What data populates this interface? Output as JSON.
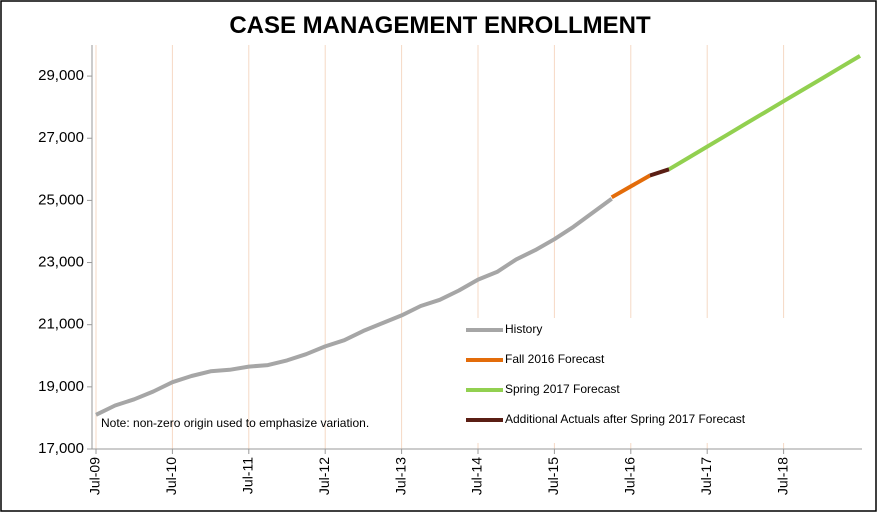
{
  "chart_data": {
    "type": "line",
    "title": "CASE MANAGEMENT ENROLLMENT",
    "annotation": "Note: non-zero origin used to emphasize variation.",
    "categories": [
      "Jul-09",
      null,
      null,
      null,
      "Jul-10",
      null,
      null,
      null,
      "Jul-11",
      null,
      null,
      null,
      "Jul-12",
      null,
      null,
      null,
      "Jul-13",
      null,
      null,
      null,
      "Jul-14",
      null,
      null,
      null,
      "Jul-15",
      null,
      null,
      null,
      "Jul-16",
      null,
      null,
      null,
      "Jul-17",
      null,
      null,
      null,
      "Jul-18",
      null,
      null,
      null,
      null
    ],
    "series": [
      {
        "name": "History",
        "color": "#a6a6a6",
        "values": [
          18100,
          18400,
          18600,
          18850,
          19150,
          19350,
          19500,
          19550,
          19650,
          19700,
          19850,
          20050,
          20300,
          20500,
          20800,
          21050,
          21300,
          21600,
          21800,
          22100,
          22450,
          22700,
          23100,
          23400,
          23750,
          24150,
          24600,
          25050,
          null,
          null,
          null,
          null,
          null,
          null,
          null,
          null,
          null,
          null,
          null,
          null,
          null
        ]
      },
      {
        "name": "Fall 2016 Forecast",
        "color": "#e36c0a",
        "values": [
          null,
          null,
          null,
          null,
          null,
          null,
          null,
          null,
          null,
          null,
          null,
          null,
          null,
          null,
          null,
          null,
          null,
          null,
          null,
          null,
          null,
          null,
          null,
          null,
          null,
          null,
          null,
          25100,
          25450,
          25800,
          null,
          null,
          null,
          null,
          null,
          null,
          null,
          null,
          null,
          null,
          null
        ]
      },
      {
        "name": "Spring 2017 Forecast",
        "color": "#92d050",
        "values": [
          null,
          null,
          null,
          null,
          null,
          null,
          null,
          null,
          null,
          null,
          null,
          null,
          null,
          null,
          null,
          null,
          null,
          null,
          null,
          null,
          null,
          null,
          null,
          null,
          null,
          null,
          null,
          null,
          null,
          null,
          26000,
          26365,
          26730,
          27095,
          27460,
          27825,
          28190,
          28555,
          28920,
          29285,
          29650
        ]
      },
      {
        "name": "Additional Actuals after Spring 2017 Forecast",
        "color": "#5a1e14",
        "values": [
          null,
          null,
          null,
          null,
          null,
          null,
          null,
          null,
          null,
          null,
          null,
          null,
          null,
          null,
          null,
          null,
          null,
          null,
          null,
          null,
          null,
          null,
          null,
          null,
          null,
          null,
          null,
          null,
          null,
          25800,
          26000,
          null,
          null,
          null,
          null,
          null,
          null,
          null,
          null,
          null,
          null
        ]
      }
    ],
    "ylim": [
      17000,
      30000
    ],
    "yticks": [
      {
        "value": 17000,
        "label": "17,000"
      },
      {
        "value": 19000,
        "label": "19,000"
      },
      {
        "value": 21000,
        "label": "21,000"
      },
      {
        "value": 23000,
        "label": "23,000"
      },
      {
        "value": 25000,
        "label": "25,000"
      },
      {
        "value": 27000,
        "label": "27,000"
      },
      {
        "value": 29000,
        "label": "29,000"
      }
    ],
    "grid": true,
    "legend": "lower right"
  }
}
